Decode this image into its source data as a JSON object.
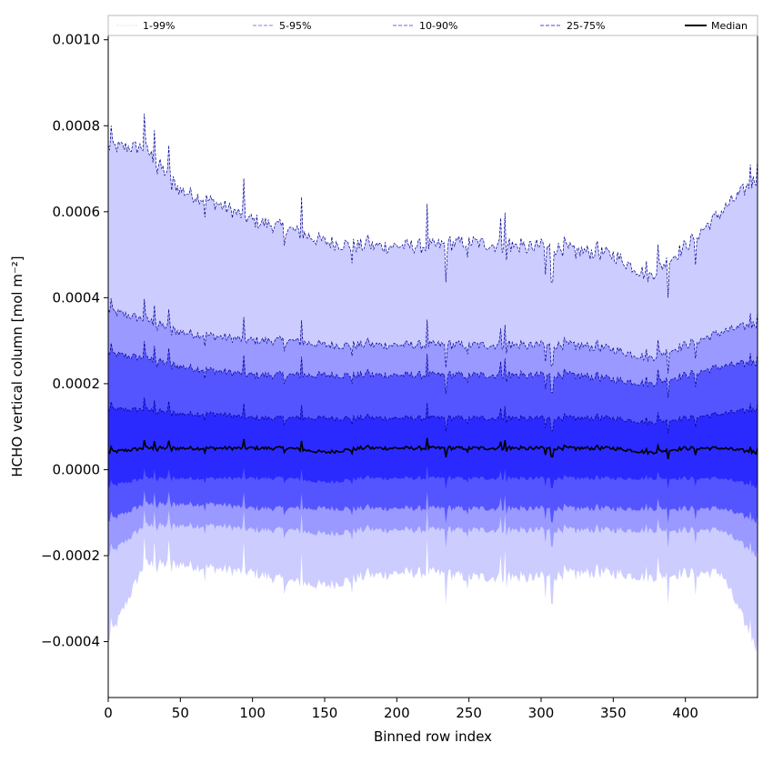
{
  "chart_data": {
    "type": "area",
    "xlabel": "Binned row index",
    "ylabel": "HCHO vertical column [mol m⁻²]",
    "xlim": [
      0,
      450
    ],
    "ylim": [
      -0.00053,
      0.00101
    ],
    "x_ticks": [
      0,
      50,
      100,
      150,
      200,
      250,
      300,
      350,
      400
    ],
    "x_tick_labels": [
      "0",
      "50",
      "100",
      "150",
      "200",
      "250",
      "300",
      "350",
      "400"
    ],
    "y_ticks": [
      -0.0004,
      -0.0002,
      0.0,
      0.0002,
      0.0004,
      0.0006,
      0.0008,
      0.001
    ],
    "y_tick_labels": [
      "−0.0004",
      "−0.0002",
      "0.0000",
      "0.0002",
      "0.0004",
      "0.0006",
      "0.0008",
      "0.0010"
    ],
    "legend": {
      "placement": "top",
      "entries": [
        {
          "label": "1-99%",
          "style": "thin-dotted",
          "color": "#d8d8f8"
        },
        {
          "label": "5-95%",
          "style": "thin-dashed",
          "color": "#8080e0"
        },
        {
          "label": "10-90%",
          "style": "dashed",
          "color": "#6464e6"
        },
        {
          "label": "25-75%",
          "style": "dashed",
          "color": "#4848e0"
        },
        {
          "label": "Median",
          "style": "solid",
          "color": "#000000"
        }
      ]
    },
    "x_samples": [
      0,
      25,
      50,
      75,
      100,
      125,
      150,
      175,
      200,
      225,
      250,
      275,
      300,
      325,
      350,
      375,
      400,
      425,
      450
    ],
    "series": [
      {
        "name": "1-99%",
        "band": "outer",
        "fill": "#ccccff",
        "upper": [
          0.00075,
          0.00075,
          0.00065,
          0.00062,
          0.00058,
          0.00056,
          0.00053,
          0.00052,
          0.00052,
          0.00052,
          0.00053,
          0.00052,
          0.00052,
          0.00051,
          0.0005,
          0.00045,
          0.00052,
          0.0006,
          0.00068
        ],
        "lower": [
          -0.0004,
          -0.00022,
          -0.00022,
          -0.00023,
          -0.00024,
          -0.00026,
          -0.00027,
          -0.00025,
          -0.00024,
          -0.00024,
          -0.00025,
          -0.00025,
          -0.00025,
          -0.00024,
          -0.00024,
          -0.00025,
          -0.00024,
          -0.00024,
          -0.00042
        ]
      },
      {
        "name": "5-95%",
        "band": "p5-95",
        "fill": "#9999ff",
        "upper": [
          0.00037,
          0.00035,
          0.00032,
          0.00031,
          0.0003,
          0.0003,
          0.00029,
          0.00029,
          0.00029,
          0.00029,
          0.00029,
          0.00029,
          0.00029,
          0.00029,
          0.00028,
          0.00026,
          0.00029,
          0.00032,
          0.00034
        ],
        "lower": [
          -0.0002,
          -0.00013,
          -0.00013,
          -0.00013,
          -0.00014,
          -0.00014,
          -0.00015,
          -0.00014,
          -0.00014,
          -0.00014,
          -0.00014,
          -0.00014,
          -0.00014,
          -0.00014,
          -0.00014,
          -0.00014,
          -0.00014,
          -0.00014,
          -0.0002
        ]
      },
      {
        "name": "10-90%",
        "band": "p10-90",
        "fill": "#5555ff",
        "upper": [
          0.00027,
          0.00026,
          0.00024,
          0.00023,
          0.00022,
          0.00022,
          0.00022,
          0.00022,
          0.00022,
          0.00022,
          0.00022,
          0.00022,
          0.00022,
          0.00022,
          0.00021,
          0.0002,
          0.00022,
          0.00024,
          0.00025
        ],
        "lower": [
          -0.00012,
          -8e-05,
          -8e-05,
          -8e-05,
          -9e-05,
          -9e-05,
          -9e-05,
          -9e-05,
          -9e-05,
          -9e-05,
          -9e-05,
          -9e-05,
          -9e-05,
          -9e-05,
          -9e-05,
          -9e-05,
          -9e-05,
          -9e-05,
          -0.00012
        ]
      },
      {
        "name": "25-75%",
        "band": "p25-75",
        "fill": "#2a2aff",
        "upper": [
          0.00014,
          0.00014,
          0.00013,
          0.00013,
          0.00012,
          0.00012,
          0.00012,
          0.00012,
          0.00012,
          0.00012,
          0.00012,
          0.00012,
          0.00012,
          0.00012,
          0.00012,
          0.00011,
          0.00012,
          0.00013,
          0.00014
        ],
        "lower": [
          -4e-05,
          -2e-05,
          -2e-05,
          -2e-05,
          -2e-05,
          -2e-05,
          -3e-05,
          -2e-05,
          -2e-05,
          -2e-05,
          -2e-05,
          -2e-05,
          -2e-05,
          -2e-05,
          -2e-05,
          -2e-05,
          -2e-05,
          -2e-05,
          -4e-05
        ]
      },
      {
        "name": "Median",
        "band": "median",
        "color": "#000000",
        "values": [
          4e-05,
          5e-05,
          5e-05,
          5e-05,
          5e-05,
          5e-05,
          4e-05,
          5e-05,
          5e-05,
          5e-05,
          5e-05,
          5e-05,
          5e-05,
          5e-05,
          5e-05,
          4e-05,
          5e-05,
          5e-05,
          4e-05
        ]
      }
    ],
    "grid": false
  },
  "colors": {
    "outer_band": "#ccccff",
    "band_5_95": "#9999ff",
    "band_10_90": "#5555ff",
    "band_25_75": "#2a2aff",
    "median": "#000000",
    "edge_line": "#00008b"
  }
}
